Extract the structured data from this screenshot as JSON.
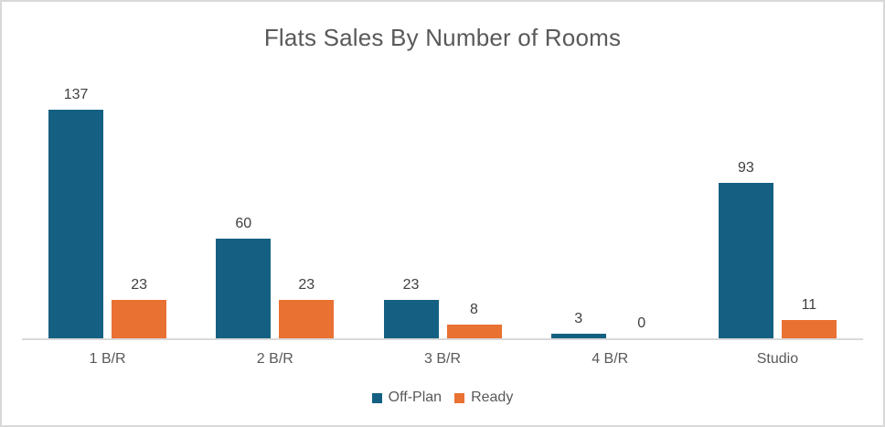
{
  "chart_data": {
    "type": "bar",
    "title": "Flats Sales By Number of Rooms",
    "categories": [
      "1 B/R",
      "2 B/R",
      "3 B/R",
      "4 B/R",
      "Studio"
    ],
    "series": [
      {
        "name": "Off-Plan",
        "color": "#156082",
        "values": [
          137,
          60,
          23,
          3,
          93
        ]
      },
      {
        "name": "Ready",
        "color": "#E97132",
        "values": [
          23,
          23,
          8,
          0,
          11
        ]
      }
    ],
    "xlabel": "",
    "ylabel": "",
    "ylim": [
      0,
      137
    ],
    "grid": false,
    "data_labels": true,
    "legend_position": "bottom"
  },
  "ui": {
    "colors": {
      "title_text": "#595959",
      "category_text": "#595959",
      "value_text": "#404040",
      "axis_line": "#d9d9d9",
      "frame_border": "#d9d9d9",
      "background": "#ffffff"
    }
  }
}
